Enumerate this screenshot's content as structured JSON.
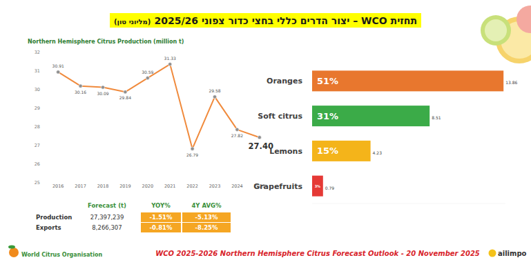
{
  "header": {
    "title": "תחזית WCO – יצור הדרים כללי בחצי כדור צפוני 2025/26",
    "unit": "(מליוני טון)"
  },
  "chart_data": [
    {
      "type": "line",
      "title": "Northern Hemisphere Citrus Production (million t)",
      "categories": [
        "2016",
        "2017",
        "2018",
        "2019",
        "2020",
        "2021",
        "2022",
        "2023",
        "2024",
        "2025"
      ],
      "values": [
        30.91,
        30.16,
        30.09,
        29.84,
        30.59,
        31.33,
        26.79,
        29.58,
        27.82,
        27.4
      ],
      "value_labels": [
        "30.91",
        "30.16",
        "30.09",
        "29.84",
        "30.59",
        "31.33",
        "26.79",
        "29.58",
        "27.82",
        "27.40"
      ],
      "color": "#f08a3c",
      "marker": "circle",
      "data_labels": true,
      "grid": false,
      "ylim": [
        25,
        32
      ],
      "yticks": [
        25,
        26,
        27,
        28,
        29,
        30,
        31,
        32
      ]
    },
    {
      "type": "bar",
      "orientation": "horizontal",
      "categories": [
        "Oranges",
        "Soft citrus",
        "Lemons",
        "Grapefruits"
      ],
      "values": [
        13.86,
        8.51,
        4.23,
        0.79
      ],
      "percent": [
        51,
        31,
        15,
        3
      ],
      "percent_labels": [
        "51%",
        "31%",
        "15%",
        "3%"
      ],
      "colors": [
        "#e8772e",
        "#3bab48",
        "#f4b41a",
        "#e53935"
      ],
      "data_labels": true,
      "tick_labels": "y",
      "xlim": [
        0,
        14
      ]
    }
  ],
  "table": {
    "columns": [
      "Forecast (t)",
      "YOY%",
      "4Y AVG%"
    ],
    "rows": [
      [
        "Production",
        "27,397,239",
        "-1.51%",
        "-5.13%"
      ],
      [
        "Exports",
        "8,266,307",
        "-0.81%",
        "-8.25%"
      ]
    ]
  },
  "footer": {
    "organisation": "World Citrus Organisation",
    "note": "WCO 2025-2026 Northern Hemisphere Citrus Forecast Outlook - 20 November 2025",
    "partner": "ailimpo"
  }
}
